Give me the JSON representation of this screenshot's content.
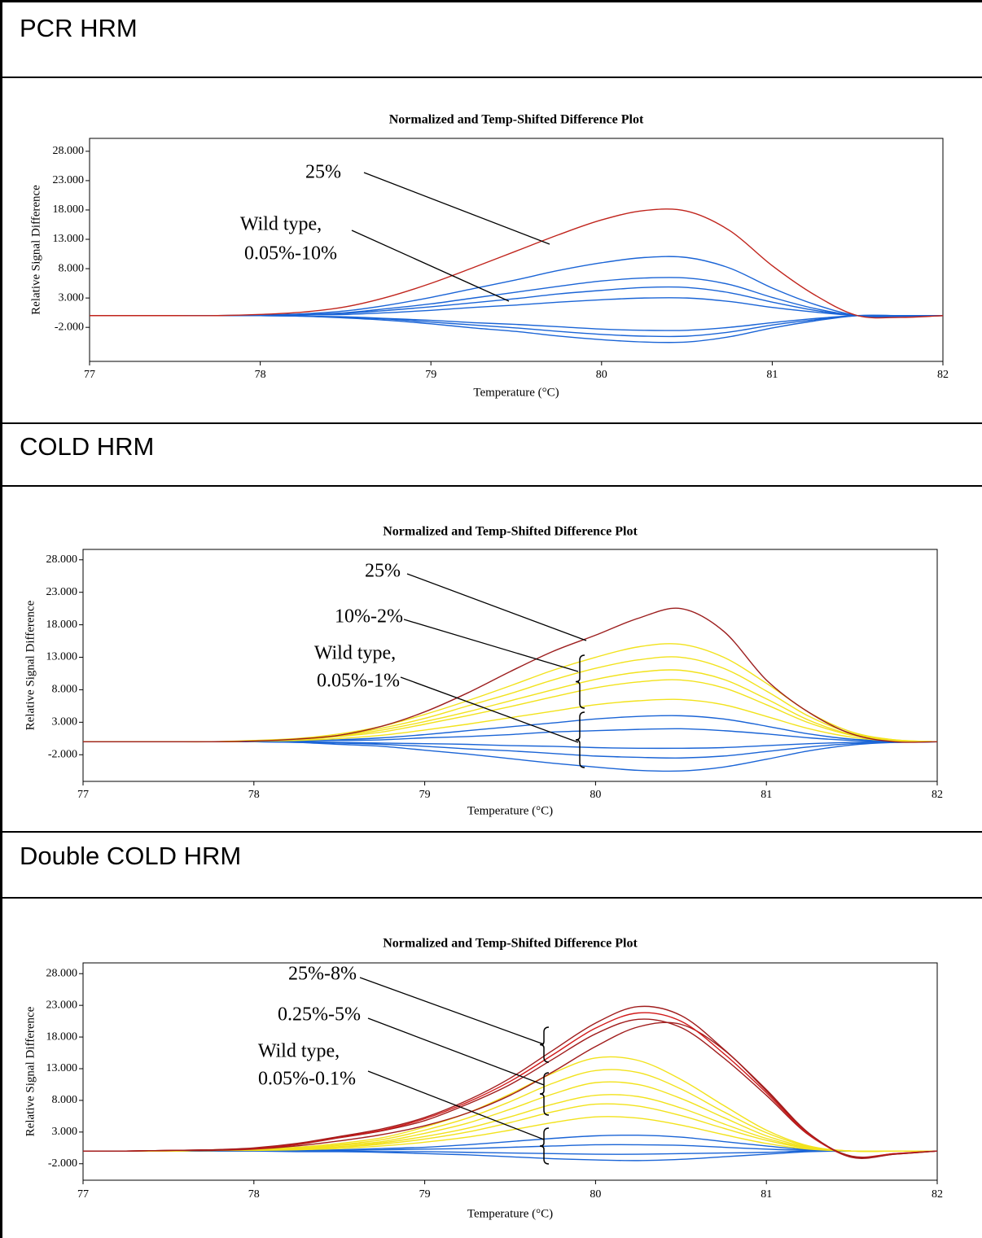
{
  "chart_data": [
    {
      "type": "line",
      "panel": "PCR HRM",
      "title": "Normalized and Temp-Shifted Difference Plot",
      "xlabel": "Temperature (°C)",
      "ylabel": "Relative Signal Difference",
      "xlim": [
        77,
        82
      ],
      "xticks": [
        77,
        78,
        79,
        80,
        81,
        82
      ],
      "ylim": [
        -7.8,
        30.2
      ],
      "yticks": [
        {
          "value": 28,
          "label": "28.000"
        },
        {
          "value": 23,
          "label": "23.000"
        },
        {
          "value": 18,
          "label": "18.000"
        },
        {
          "value": 13,
          "label": "13.000"
        },
        {
          "value": 8,
          "label": "8.000"
        },
        {
          "value": 3,
          "label": "3.000"
        },
        {
          "value": -2,
          "label": "-2.000"
        }
      ],
      "annotations": [
        "25%",
        "Wild type,",
        "0.05%-10%"
      ],
      "x": [
        77,
        77.25,
        77.5,
        77.75,
        78,
        78.25,
        78.5,
        78.75,
        79,
        79.25,
        79.5,
        79.75,
        80,
        80.25,
        80.5,
        80.75,
        81,
        81.25,
        81.5,
        81.75,
        82
      ],
      "series": [
        {
          "color": "#1a64d6",
          "values": [
            0,
            0,
            0,
            0,
            0.1,
            0.3,
            0.8,
            1.8,
            3.1,
            4.6,
            6.1,
            7.7,
            9,
            9.9,
            9.9,
            8.1,
            4.7,
            1.9,
            0,
            -0.2,
            0
          ]
        },
        {
          "color": "#1a64d6",
          "values": [
            0,
            0,
            0,
            0,
            0.1,
            0.2,
            0.5,
            1.2,
            2,
            3,
            4,
            5,
            5.9,
            6.4,
            6.4,
            5.3,
            3.1,
            1.2,
            0,
            -0.1,
            0
          ]
        },
        {
          "color": "#1a64d6",
          "values": [
            0,
            0,
            0,
            0,
            0,
            0.1,
            0.4,
            0.9,
            1.5,
            2.2,
            2.9,
            3.7,
            4.3,
            4.8,
            4.8,
            3.9,
            2.3,
            0.9,
            0,
            0,
            0
          ]
        },
        {
          "color": "#1a64d6",
          "values": [
            0,
            0,
            0,
            0,
            0,
            0.1,
            0.2,
            0.5,
            0.9,
            1.4,
            1.8,
            2.3,
            2.7,
            3,
            3,
            2.4,
            1.4,
            0.6,
            0,
            0,
            0
          ]
        },
        {
          "color": "#1a64d6",
          "values": [
            0,
            0,
            0,
            0,
            0,
            -0.1,
            -0.2,
            -0.5,
            -0.8,
            -1.2,
            -1.5,
            -1.9,
            -2.3,
            -2.5,
            -2.5,
            -2,
            -1.2,
            -0.5,
            0,
            0,
            0
          ]
        },
        {
          "color": "#1a64d6",
          "values": [
            0,
            0,
            0,
            0,
            0,
            -0.1,
            -0.3,
            -0.6,
            -1.1,
            -1.6,
            -2.1,
            -2.7,
            -3.2,
            -3.5,
            -3.5,
            -2.8,
            -1.6,
            -0.7,
            0,
            0,
            0
          ]
        },
        {
          "color": "#1a64d6",
          "values": [
            0,
            0,
            0,
            0,
            0,
            -0.1,
            -0.4,
            -0.8,
            -1.4,
            -2.1,
            -2.7,
            -3.5,
            -4.1,
            -4.5,
            -4.5,
            -3.6,
            -2.1,
            -0.9,
            0,
            0,
            0
          ]
        },
        {
          "color": "#c0241c",
          "values": [
            0,
            0,
            0,
            0,
            0.2,
            0.6,
            1.5,
            3.2,
            5.5,
            8.2,
            11,
            13.8,
            16.3,
            17.9,
            17.8,
            14.5,
            8.5,
            3.5,
            0,
            -0.3,
            0
          ]
        }
      ]
    },
    {
      "type": "line",
      "panel": "COLD HRM",
      "title": "Normalized and Temp-Shifted Difference Plot",
      "xlabel": "Temperature (°C)",
      "ylabel": "Relative Signal Difference",
      "xlim": [
        77,
        82
      ],
      "xticks": [
        77,
        78,
        79,
        80,
        81,
        82
      ],
      "ylim": [
        -6.1,
        29.6
      ],
      "yticks": [
        {
          "value": 28,
          "label": "28.000"
        },
        {
          "value": 23,
          "label": "23.000"
        },
        {
          "value": 18,
          "label": "18.000"
        },
        {
          "value": 13,
          "label": "13.000"
        },
        {
          "value": 8,
          "label": "8.000"
        },
        {
          "value": 3,
          "label": "3.000"
        },
        {
          "value": -2,
          "label": "-2.000"
        }
      ],
      "annotations": [
        "25%",
        "10%-2%",
        "Wild type,",
        "0.05%-1%"
      ],
      "x": [
        77,
        77.25,
        77.5,
        77.75,
        78,
        78.25,
        78.5,
        78.75,
        79,
        79.25,
        79.5,
        79.75,
        80,
        80.25,
        80.5,
        80.75,
        81,
        81.25,
        81.5,
        81.75,
        82
      ],
      "series": [
        {
          "color": "#1a64d6",
          "values": [
            0,
            0,
            0,
            0,
            0,
            0.1,
            0.3,
            0.6,
            1.1,
            1.7,
            2.3,
            2.9,
            3.5,
            3.9,
            4,
            3.5,
            2.4,
            1.2,
            0.4,
            0.1,
            0
          ]
        },
        {
          "color": "#1a64d6",
          "values": [
            0,
            0,
            0,
            0,
            0,
            0.1,
            0.2,
            0.3,
            0.6,
            0.8,
            1.1,
            1.5,
            1.7,
            1.9,
            2,
            1.7,
            1.2,
            0.6,
            0.2,
            0,
            0
          ]
        },
        {
          "color": "#1a64d6",
          "values": [
            0,
            0,
            0,
            0,
            0,
            0,
            -0.1,
            -0.2,
            -0.3,
            -0.4,
            -0.6,
            -0.7,
            -0.9,
            -1,
            -1,
            -0.9,
            -0.6,
            -0.3,
            -0.1,
            0,
            0
          ]
        },
        {
          "color": "#1a64d6",
          "values": [
            0,
            0,
            0,
            0,
            0,
            -0.1,
            -0.2,
            -0.4,
            -0.7,
            -1.1,
            -1.4,
            -1.8,
            -2.2,
            -2.4,
            -2.5,
            -2.2,
            -1.5,
            -0.8,
            -0.3,
            -0.1,
            0
          ]
        },
        {
          "color": "#1a64d6",
          "values": [
            0,
            0,
            0,
            0,
            0,
            -0.1,
            -0.4,
            -0.7,
            -1.3,
            -1.9,
            -2.6,
            -3.3,
            -3.9,
            -4.4,
            -4.5,
            -3.9,
            -2.7,
            -1.4,
            -0.5,
            -0.1,
            0
          ]
        },
        {
          "color": "#f2e21c",
          "values": [
            0,
            0,
            0,
            0,
            0.1,
            0.2,
            0.5,
            1,
            1.8,
            2.7,
            3.7,
            4.7,
            5.7,
            6.3,
            6.5,
            5.7,
            3.9,
            2,
            0.7,
            0.1,
            0
          ]
        },
        {
          "color": "#f2e21c",
          "values": [
            0,
            0,
            0,
            0,
            0.1,
            0.3,
            0.8,
            1.5,
            2.7,
            4,
            5.4,
            6.9,
            8.3,
            9.2,
            9.5,
            8.3,
            5.7,
            2.9,
            1,
            0.2,
            0
          ]
        },
        {
          "color": "#f2e21c",
          "values": [
            0,
            0,
            0,
            0,
            0.1,
            0.3,
            0.9,
            1.8,
            3.1,
            4.6,
            6.3,
            8,
            9.6,
            10.7,
            11,
            9.6,
            6.6,
            3.3,
            1.1,
            0.2,
            0
          ]
        },
        {
          "color": "#f2e21c",
          "values": [
            0,
            0,
            0,
            0,
            0.1,
            0.4,
            1,
            2.1,
            3.6,
            5.5,
            7.4,
            9.5,
            11.3,
            12.6,
            13,
            11.3,
            7.8,
            3.9,
            1.3,
            0.3,
            0
          ]
        },
        {
          "color": "#f2e21c",
          "values": [
            0,
            0,
            0,
            0,
            0.2,
            0.5,
            1.2,
            2.4,
            4.2,
            6.3,
            8.6,
            11,
            13,
            14.6,
            15,
            13,
            9,
            4.5,
            1.5,
            0.3,
            0
          ]
        },
        {
          "color": "#9c1e1e",
          "values": [
            0,
            0,
            0,
            0,
            0.1,
            0.4,
            1,
            2.4,
            4.6,
            7.5,
            10.8,
            13.9,
            16.4,
            19,
            20.5,
            17,
            9.5,
            4.5,
            1.2,
            0,
            0
          ]
        }
      ]
    },
    {
      "type": "line",
      "panel": "Double COLD HRM",
      "title": "Normalized and Temp-Shifted Difference Plot",
      "xlabel": "Temperature (°C)",
      "ylabel": "Relative Signal Difference",
      "xlim": [
        77,
        82
      ],
      "xticks": [
        77,
        78,
        79,
        80,
        81,
        82
      ],
      "ylim": [
        -4.6,
        29.7
      ],
      "yticks": [
        {
          "value": 28,
          "label": "28.000"
        },
        {
          "value": 23,
          "label": "23.000"
        },
        {
          "value": 18,
          "label": "18.000"
        },
        {
          "value": 13,
          "label": "13.000"
        },
        {
          "value": 8,
          "label": "8.000"
        },
        {
          "value": 3,
          "label": "3.000"
        },
        {
          "value": -2,
          "label": "-2.000"
        }
      ],
      "annotations": [
        "25%-8%",
        "0.25%-5%",
        "Wild type,",
        "0.05%-0.1%"
      ],
      "x": [
        77,
        77.25,
        77.5,
        77.75,
        78,
        78.25,
        78.5,
        78.75,
        79,
        79.25,
        79.5,
        79.75,
        80,
        80.25,
        80.5,
        80.75,
        81,
        81.25,
        81.5,
        81.75,
        82
      ],
      "series": [
        {
          "color": "#1a64d6",
          "values": [
            0,
            0,
            0,
            0,
            0.1,
            0.1,
            0.2,
            0.4,
            0.6,
            1,
            1.5,
            2,
            2.4,
            2.5,
            2.2,
            1.5,
            0.8,
            0.2,
            0,
            0,
            0
          ]
        },
        {
          "color": "#1a64d6",
          "values": [
            0,
            0,
            0,
            0,
            0,
            0,
            0.1,
            0.2,
            0.3,
            0.4,
            0.6,
            0.8,
            1,
            1,
            0.9,
            0.6,
            0.3,
            0.1,
            0,
            0,
            0
          ]
        },
        {
          "color": "#1a64d6",
          "values": [
            0,
            0,
            0,
            0,
            0,
            0,
            0,
            -0.1,
            -0.1,
            -0.2,
            -0.3,
            -0.4,
            -0.5,
            -0.5,
            -0.4,
            -0.3,
            -0.2,
            0,
            0,
            0,
            0
          ]
        },
        {
          "color": "#1a64d6",
          "values": [
            0,
            0,
            0,
            0,
            0,
            -0.1,
            -0.1,
            -0.2,
            -0.4,
            -0.6,
            -0.9,
            -1.2,
            -1.4,
            -1.5,
            -1.3,
            -0.9,
            -0.5,
            -0.1,
            0,
            0,
            0
          ]
        },
        {
          "color": "#f2e21c",
          "values": [
            0,
            0,
            0,
            0.1,
            0.1,
            0.2,
            0.4,
            0.8,
            1.4,
            2.2,
            3.3,
            4.5,
            5.4,
            5.2,
            4.1,
            2.6,
            1.2,
            0.3,
            0,
            0,
            0
          ]
        },
        {
          "color": "#f2e21c",
          "values": [
            0,
            0,
            0,
            0.1,
            0.2,
            0.3,
            0.6,
            1.1,
            1.9,
            3,
            4.5,
            6.2,
            7.4,
            7.1,
            5.6,
            3.6,
            1.7,
            0.4,
            0,
            0,
            0
          ]
        },
        {
          "color": "#f2e21c",
          "values": [
            0,
            0,
            0,
            0.1,
            0.2,
            0.4,
            0.7,
            1.3,
            2.3,
            3.6,
            5.4,
            7.4,
            8.8,
            8.6,
            6.8,
            4.3,
            2,
            0.5,
            0,
            0,
            0
          ]
        },
        {
          "color": "#f2e21c",
          "values": [
            0,
            0,
            0,
            0.1,
            0.2,
            0.4,
            0.9,
            1.5,
            2.8,
            4.4,
            6.6,
            9,
            10.8,
            10.5,
            8.3,
            5.3,
            2.4,
            0.6,
            0,
            0,
            0
          ]
        },
        {
          "color": "#f2e21c",
          "values": [
            0,
            0,
            0,
            0.1,
            0.3,
            0.5,
            1,
            1.8,
            3.3,
            5.2,
            7.8,
            10.7,
            12.7,
            12.4,
            9.8,
            6.2,
            2.9,
            0.7,
            0,
            0,
            0
          ]
        },
        {
          "color": "#f2e21c",
          "values": [
            0,
            0,
            0,
            0.2,
            0.3,
            0.6,
            1.2,
            2.1,
            3.8,
            6,
            9,
            12.3,
            14.7,
            14.3,
            11.3,
            7.2,
            3.3,
            0.8,
            0,
            0,
            0
          ]
        },
        {
          "color": "#a01c1c",
          "values": [
            0,
            0,
            0.1,
            0.1,
            0.3,
            0.8,
            1.6,
            2.6,
            4,
            6,
            8.8,
            12.5,
            16.5,
            19.6,
            20,
            16,
            9.5,
            2.7,
            -1,
            -0.5,
            0
          ]
        },
        {
          "color": "#a01c1c",
          "values": [
            0,
            0,
            0.1,
            0.2,
            0.4,
            1,
            2.1,
            3.2,
            4.8,
            7.4,
            10.5,
            14.5,
            18.5,
            20.8,
            19.5,
            14.7,
            8.8,
            2.5,
            -0.8,
            -0.4,
            0
          ]
        },
        {
          "color": "#d21a1a",
          "values": [
            0,
            0,
            0.1,
            0.2,
            0.4,
            1.1,
            2.2,
            3.3,
            5.1,
            7.7,
            11,
            15.2,
            19.4,
            21.8,
            20.5,
            15.4,
            9.2,
            2.6,
            -0.9,
            -0.4,
            0
          ]
        },
        {
          "color": "#a01c1c",
          "values": [
            0,
            0,
            0.1,
            0.2,
            0.5,
            1.2,
            2.3,
            3.5,
            5.3,
            8,
            11.5,
            15.9,
            20.2,
            22.8,
            21.4,
            16.1,
            9.7,
            2.8,
            -0.9,
            -0.5,
            0
          ]
        }
      ]
    }
  ]
}
